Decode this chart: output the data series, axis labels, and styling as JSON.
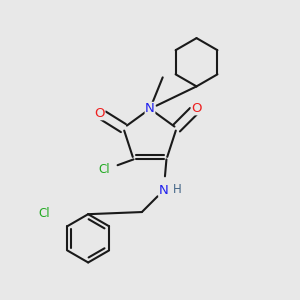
{
  "background_color": "#e8e8e8",
  "bond_color": "#1a1a1a",
  "N_color": "#2020ee",
  "O_color": "#ee2020",
  "Cl_color": "#22aa22",
  "H_color": "#446688",
  "bond_lw": 1.5,
  "figsize": [
    3.0,
    3.0
  ],
  "dpi": 100,
  "xlim": [
    0.0,
    1.0
  ],
  "ylim": [
    0.0,
    1.0
  ]
}
